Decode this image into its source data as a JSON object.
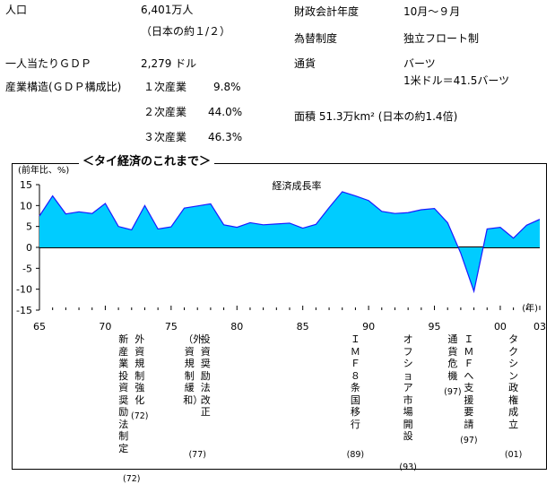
{
  "facts": {
    "population_label": "人口",
    "population_value": "6,401万人",
    "population_note": "（日本の約１/２）",
    "gdp_pc_label": "一人当たりＧＤＰ",
    "gdp_pc_value": "2,279 ドル",
    "industry_label": "産業構造(ＧＤＰ構成比)",
    "primary_label": "１次産業",
    "primary_value": "9.8%",
    "secondary_label": "２次産業",
    "secondary_value": "44.0%",
    "tertiary_label": "３次産業",
    "tertiary_value": "46.3%",
    "fiscal_label": "財政会計年度",
    "fiscal_value": "10月～９月",
    "fx_label": "為替制度",
    "fx_value": "独立フロート制",
    "currency_label": "通貨",
    "currency_value": "バーツ",
    "currency_rate": "1米ドル＝41.5バーツ",
    "area_text": "面積 51.3万km² (日本の約1.4倍)"
  },
  "section_title": "＜タイ経済のこれまで＞",
  "colors": {
    "fill": "#00ccff",
    "line": "#1a1aff"
  },
  "chart_data": {
    "type": "area",
    "title": "経済成長率",
    "ylabel": "(前年比、%)",
    "xlabel": "(年)",
    "ylim": [
      -15,
      15
    ],
    "xlim": [
      1965,
      2003
    ],
    "yticks": [
      15,
      10,
      5,
      0,
      -5,
      -10,
      -15
    ],
    "xticks": [
      {
        "value": 1965,
        "label": "65"
      },
      {
        "value": 1970,
        "label": "70"
      },
      {
        "value": 1975,
        "label": "75"
      },
      {
        "value": 1980,
        "label": "80"
      },
      {
        "value": 1985,
        "label": "85"
      },
      {
        "value": 1990,
        "label": "90"
      },
      {
        "value": 1995,
        "label": "95"
      },
      {
        "value": 2000,
        "label": "00"
      },
      {
        "value": 2003,
        "label": "03"
      }
    ],
    "x": [
      1965,
      1966,
      1967,
      1968,
      1969,
      1970,
      1971,
      1972,
      1973,
      1974,
      1975,
      1976,
      1977,
      1978,
      1979,
      1980,
      1981,
      1982,
      1983,
      1984,
      1985,
      1986,
      1987,
      1988,
      1989,
      1990,
      1991,
      1992,
      1993,
      1994,
      1995,
      1996,
      1997,
      1998,
      1999,
      2000,
      2001,
      2002,
      2003
    ],
    "values": [
      7.5,
      12.3,
      8.0,
      8.5,
      8.1,
      10.5,
      5.0,
      4.2,
      10.0,
      4.4,
      4.9,
      9.4,
      9.9,
      10.4,
      5.4,
      4.8,
      5.9,
      5.4,
      5.6,
      5.8,
      4.6,
      5.5,
      9.5,
      13.3,
      12.3,
      11.2,
      8.6,
      8.1,
      8.3,
      9.0,
      9.3,
      5.9,
      -1.4,
      -10.5,
      4.4,
      4.8,
      2.2,
      5.3,
      6.7
    ],
    "grid": false,
    "annotations": [
      {
        "year": 1972,
        "columns": [
          {
            "text": "新産業投資奨励法制定"
          },
          {
            "text": "外資規制強化",
            "sub": "(72)"
          }
        ],
        "year_label": "(72)"
      },
      {
        "year": 1977,
        "columns": [
          {
            "text": "（外資規制緩和）"
          },
          {
            "text": "投資奨励法改正"
          }
        ],
        "year_label": "(77)"
      },
      {
        "year": 1989,
        "columns": [
          {
            "text": "ＩＭＦ８条国移行"
          }
        ],
        "year_label": "(89)"
      },
      {
        "year": 1993,
        "columns": [
          {
            "text": "オフショア市場開設"
          }
        ],
        "year_label": "(93)"
      },
      {
        "year": 1997,
        "columns": [
          {
            "text": "通貨危機",
            "sub": "(97)"
          },
          {
            "text": "ＩＭＦへ支援要請",
            "sub": "(97)"
          }
        ]
      },
      {
        "year": 2001,
        "columns": [
          {
            "text": "タクシン政権成立"
          }
        ],
        "year_label": "(01)"
      }
    ]
  }
}
